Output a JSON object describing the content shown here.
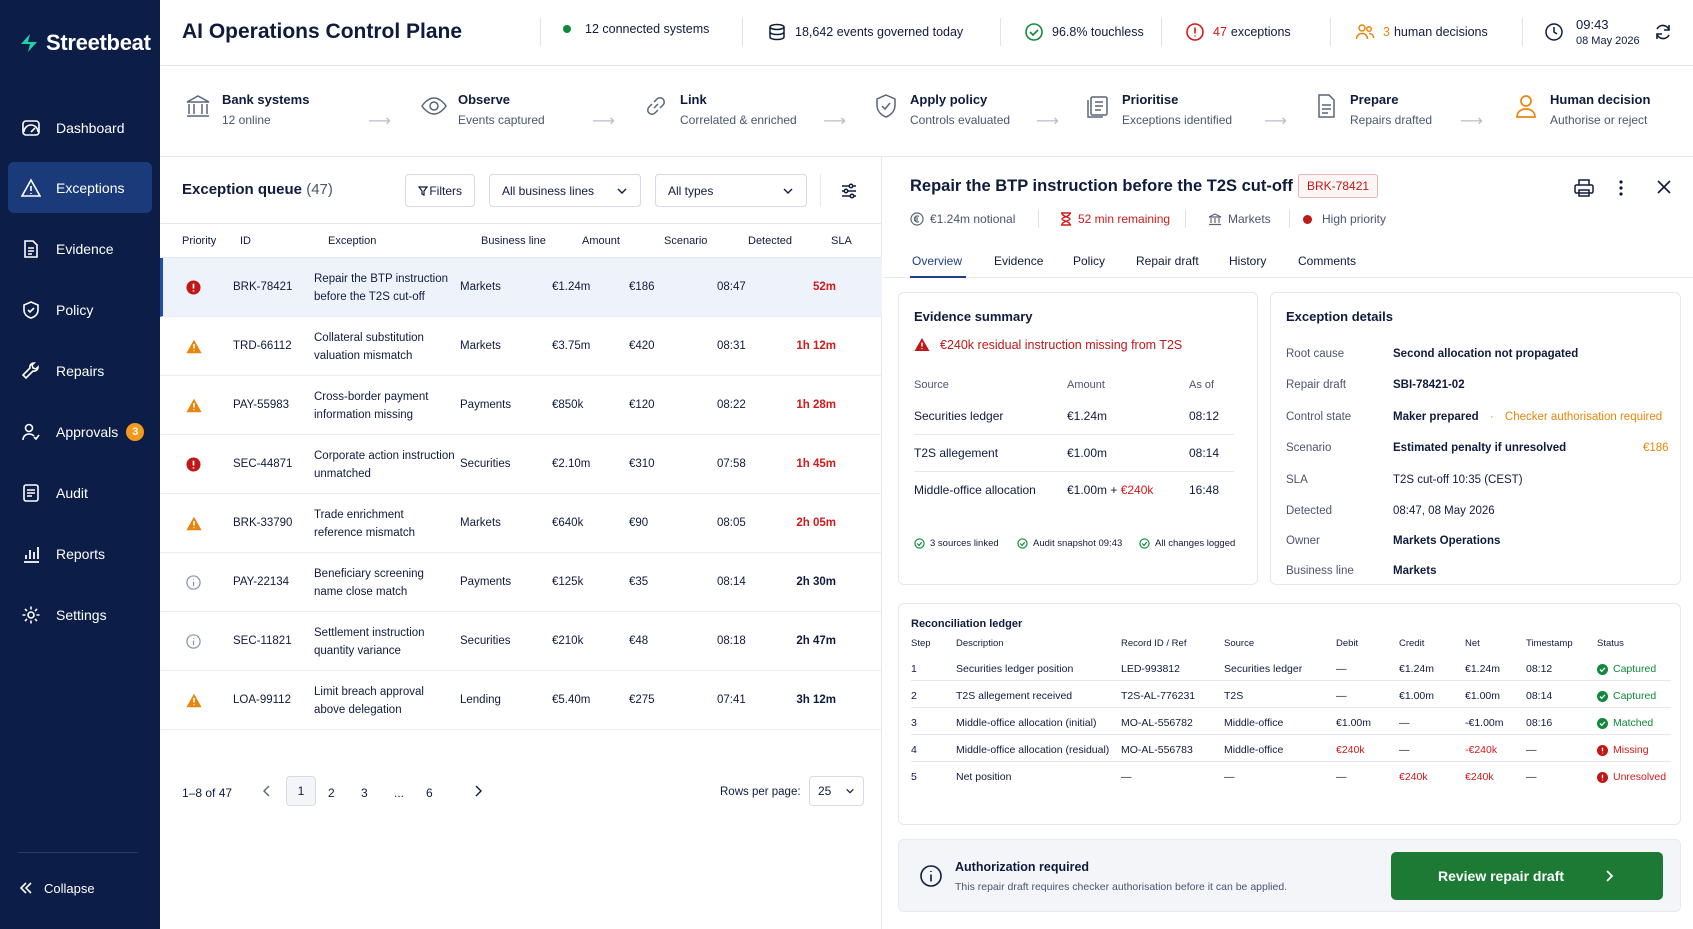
{
  "brand": "Streetbeat",
  "sidebar": {
    "items": [
      {
        "label": "Dashboard"
      },
      {
        "label": "Exceptions"
      },
      {
        "label": "Evidence"
      },
      {
        "label": "Policy"
      },
      {
        "label": "Repairs"
      },
      {
        "label": "Approvals",
        "badge": "3"
      },
      {
        "label": "Audit"
      },
      {
        "label": "Reports"
      },
      {
        "label": "Settings"
      }
    ],
    "collapse": "Collapse"
  },
  "header": {
    "title": "AI Operations Control Plane",
    "stats": {
      "connected": "12 connected systems",
      "events": "18,642 events governed today",
      "touchless": "96.8% touchless",
      "exceptions_num": "47",
      "exceptions_label": "exceptions",
      "decisions_num": "3",
      "decisions_label": "human decisions",
      "time": "09:43",
      "date": "08 May 2026"
    }
  },
  "pipeline": [
    {
      "title": "Bank systems",
      "sub": "12 online"
    },
    {
      "title": "Observe",
      "sub": "Events captured"
    },
    {
      "title": "Link",
      "sub": "Correlated & enriched"
    },
    {
      "title": "Apply policy",
      "sub": "Controls evaluated"
    },
    {
      "title": "Prioritise",
      "sub": "Exceptions identified"
    },
    {
      "title": "Prepare",
      "sub": "Repairs drafted"
    },
    {
      "title": "Human decision",
      "sub": "Authorise or reject"
    }
  ],
  "queue": {
    "title": "Exception queue",
    "count": "(47)",
    "filters": "Filters",
    "business_lines": "All business lines",
    "types": "All types",
    "columns": [
      "Priority",
      "ID",
      "Exception",
      "Business line",
      "Amount",
      "Scenario",
      "Detected",
      "SLA"
    ],
    "rows": [
      {
        "priority": "critical",
        "id": "BRK-78421",
        "exc1": "Repair the BTP instruction",
        "exc2": "before the T2S cut-off",
        "line": "Markets",
        "amount": "€1.24m",
        "scenario": "€186",
        "detected": "08:47",
        "sla": "52m",
        "sla_red": true
      },
      {
        "priority": "warning",
        "id": "TRD-66112",
        "exc1": "Collateral substitution",
        "exc2": "valuation mismatch",
        "line": "Markets",
        "amount": "€3.75m",
        "scenario": "€420",
        "detected": "08:31",
        "sla": "1h 12m",
        "sla_red": true
      },
      {
        "priority": "warning",
        "id": "PAY-55983",
        "exc1": "Cross-border payment",
        "exc2": "information missing",
        "line": "Payments",
        "amount": "€850k",
        "scenario": "€120",
        "detected": "08:22",
        "sla": "1h 28m",
        "sla_red": true
      },
      {
        "priority": "critical",
        "id": "SEC-44871",
        "exc1": "Corporate action instruction",
        "exc2": "unmatched",
        "line": "Securities",
        "amount": "€2.10m",
        "scenario": "€310",
        "detected": "07:58",
        "sla": "1h 45m",
        "sla_red": true
      },
      {
        "priority": "warning",
        "id": "BRK-33790",
        "exc1": "Trade enrichment",
        "exc2": "reference mismatch",
        "line": "Markets",
        "amount": "€640k",
        "scenario": "€90",
        "detected": "08:05",
        "sla": "2h 05m",
        "sla_red": true
      },
      {
        "priority": "info",
        "id": "PAY-22134",
        "exc1": "Beneficiary screening",
        "exc2": "name close match",
        "line": "Payments",
        "amount": "€125k",
        "scenario": "€35",
        "detected": "08:14",
        "sla": "2h 30m",
        "sla_red": false
      },
      {
        "priority": "info",
        "id": "SEC-11821",
        "exc1": "Settlement instruction",
        "exc2": "quantity variance",
        "line": "Securities",
        "amount": "€210k",
        "scenario": "€48",
        "detected": "08:18",
        "sla": "2h 47m",
        "sla_red": false
      },
      {
        "priority": "warning",
        "id": "LOA-99112",
        "exc1": "Limit breach approval",
        "exc2": "above delegation",
        "line": "Lending",
        "amount": "€5.40m",
        "scenario": "€275",
        "detected": "07:41",
        "sla": "3h 12m",
        "sla_red": false
      }
    ],
    "pager": {
      "range": "1–8 of 47",
      "pages": [
        "1",
        "2",
        "3",
        "...",
        "6"
      ],
      "rows_label": "Rows per page:",
      "rows_value": "25"
    }
  },
  "detail": {
    "title": "Repair the BTP instruction before the T2S cut-off",
    "id": "BRK-78421",
    "notional": "€1.24m notional",
    "remaining": "52 min remaining",
    "line": "Markets",
    "priority": "High priority",
    "tabs": [
      "Overview",
      "Evidence",
      "Policy",
      "Repair draft",
      "History",
      "Comments"
    ],
    "evidence": {
      "title": "Evidence summary",
      "alert": "€240k residual instruction missing from T2S",
      "cols": [
        "Source",
        "Amount",
        "As of"
      ],
      "rows": [
        {
          "source": "Securities ledger",
          "amount": "€1.24m",
          "amount_extra": "",
          "asof": "08:12"
        },
        {
          "source": "T2S allegement",
          "amount": "€1.00m",
          "amount_extra": "",
          "asof": "08:14"
        },
        {
          "source": "Middle-office allocation",
          "amount": "€1.00m + ",
          "amount_extra": "€240k",
          "asof": "16:48"
        }
      ],
      "foot": [
        "3 sources linked",
        "Audit snapshot 09:43",
        "All changes logged"
      ]
    },
    "details": {
      "title": "Exception details",
      "root_cause_k": "Root cause",
      "root_cause_v": "Second allocation not propagated",
      "repair_k": "Repair draft",
      "repair_v": "SBI-78421-02",
      "control_k": "Control state",
      "control_v": "Maker prepared",
      "control_sep": "·",
      "control_v2": "Checker authorisation required",
      "scenario_k": "Scenario",
      "scenario_v": "Estimated penalty if unresolved",
      "scenario_amt": "€186",
      "sla_k": "SLA",
      "sla_v": "T2S cut-off 10:35 (CEST)",
      "detected_k": "Detected",
      "detected_v": "08:47, 08 May 2026",
      "owner_k": "Owner",
      "owner_v": "Markets Operations",
      "line_k": "Business line",
      "line_v": "Markets"
    },
    "ledger": {
      "title": "Reconciliation ledger",
      "cols": [
        "Step",
        "Description",
        "Record ID / Ref",
        "Source",
        "Debit",
        "Credit",
        "Net",
        "Timestamp",
        "Status"
      ],
      "rows": [
        {
          "step": "1",
          "desc": "Securities ledger position",
          "ref": "LED-993812",
          "src": "Securities ledger",
          "debit": "—",
          "credit": "€1.24m",
          "net": "€1.24m",
          "ts": "08:12",
          "status": "Captured",
          "kind": "ok"
        },
        {
          "step": "2",
          "desc": "T2S allegement received",
          "ref": "T2S-AL-776231",
          "src": "T2S",
          "debit": "—",
          "credit": "€1.00m",
          "net": "€1.00m",
          "ts": "08:14",
          "status": "Captured",
          "kind": "ok"
        },
        {
          "step": "3",
          "desc": "Middle-office allocation (initial)",
          "ref": "MO-AL-556782",
          "src": "Middle-office",
          "debit": "€1.00m",
          "credit": "—",
          "net": "-€1.00m",
          "ts": "08:16",
          "status": "Matched",
          "kind": "ok"
        },
        {
          "step": "4",
          "desc": "Middle-office allocation (residual)",
          "ref": "MO-AL-556783",
          "src": "Middle-office",
          "debit": "€240k",
          "credit": "—",
          "net": "-€240k",
          "ts": "—",
          "status": "Missing",
          "kind": "bad"
        },
        {
          "step": "5",
          "desc": "Net position",
          "ref": "—",
          "src": "—",
          "debit": "—",
          "credit": "€240k",
          "net": "€240k",
          "ts": "—",
          "status": "Unresolved",
          "kind": "bad"
        }
      ]
    },
    "auth": {
      "title": "Authorization required",
      "text": "This repair draft requires checker authorisation before it can be applied.",
      "button": "Review repair draft"
    }
  }
}
